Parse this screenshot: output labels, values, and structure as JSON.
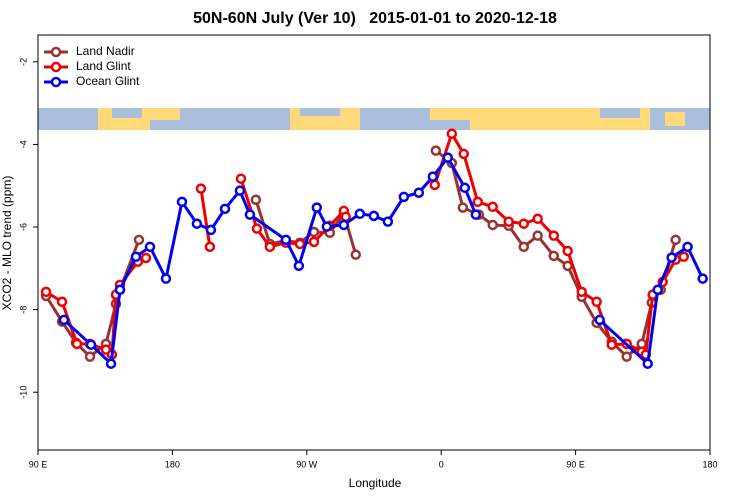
{
  "chart_data": {
    "type": "line",
    "title": "50N-60N July (Ver 10)   2015-01-01 to 2020-12-18",
    "x_label": "Longitude",
    "y_label": "XCO2 - MLO trend (ppm)",
    "xlim": [
      90,
      540
    ],
    "xticks": [
      {
        "value": 90,
        "label": "90 E"
      },
      {
        "value": 180,
        "label": "180"
      },
      {
        "value": 270,
        "label": "90 W"
      },
      {
        "value": 360,
        "label": "0"
      },
      {
        "value": 450,
        "label": "90 E"
      },
      {
        "value": 540,
        "label": "180"
      }
    ],
    "ylim": [
      -11.4,
      -1.35
    ],
    "yticks": [
      -2,
      -4,
      -6,
      -8,
      -10
    ],
    "legend": "top-left",
    "series": [
      {
        "name": "Land Nadir",
        "color": "#993333",
        "x": [
          95.4,
          106.1,
          115.4,
          124.8,
          135.5,
          142.2,
          144.9,
          157.6,
          null,
          235.9,
          245.3,
          256.0,
          265.4,
          274.8,
          285.4,
          294.8,
          302.8,
          null,
          356.4,
          367.1,
          374.5,
          385.2,
          394.5,
          405.2,
          415.3,
          424.6,
          435.4,
          444.7,
          454.1,
          464.1,
          474.2,
          484.2,
          494.3,
          501.0,
          507.0,
          517.0
        ],
        "values": [
          -7.67,
          -8.29,
          -8.8,
          -9.14,
          -8.83,
          -7.86,
          -7.52,
          -6.31,
          null,
          -5.34,
          -6.41,
          -6.33,
          -6.38,
          -6.12,
          -6.14,
          -5.68,
          -6.67,
          null,
          -4.15,
          -4.45,
          -5.53,
          -5.7,
          -5.95,
          -5.97,
          -6.48,
          -6.21,
          -6.7,
          -6.94,
          -7.69,
          -8.32,
          -8.78,
          -9.14,
          -8.83,
          -7.83,
          -7.52,
          -6.31
        ]
      },
      {
        "name": "Land Glint",
        "color": "#ee0000",
        "x": [
          95.4,
          106.1,
          116.1,
          124.8,
          135.5,
          139.5,
          142.2,
          144.9,
          156.9,
          162.3,
          null,
          199.1,
          205.1,
          null,
          225.9,
          236.6,
          245.3,
          256.0,
          265.4,
          274.8,
          285.4,
          294.8,
          296.1,
          null,
          355.7,
          367.1,
          375.1,
          384.5,
          394.5,
          405.2,
          415.3,
          424.6,
          435.4,
          444.7,
          454.1,
          464.1,
          474.2,
          484.2,
          494.3,
          497.0,
          501.6,
          508.3,
          517.0,
          522.4
        ],
        "values": [
          -7.57,
          -7.81,
          -8.83,
          -8.83,
          -8.97,
          -9.09,
          -7.64,
          -7.4,
          -6.84,
          -6.75,
          null,
          -5.07,
          -6.48,
          null,
          -4.83,
          -6.04,
          -6.48,
          -6.38,
          -6.41,
          -6.36,
          -5.97,
          -5.61,
          -5.75,
          null,
          -4.98,
          -3.74,
          -4.23,
          -5.39,
          -5.51,
          -5.87,
          -5.92,
          -5.8,
          -6.21,
          -6.58,
          -7.57,
          -7.81,
          -8.85,
          -8.83,
          -9.02,
          -9.09,
          -7.64,
          -7.33,
          -6.79,
          -6.72
        ]
      },
      {
        "name": "Ocean Glint",
        "color": "#0000ee",
        "x": [
          107.4,
          125.5,
          138.9,
          144.9,
          155.6,
          165.0,
          175.7,
          186.4,
          196.4,
          205.8,
          215.2,
          225.2,
          231.9,
          256.0,
          264.7,
          276.7,
          283.4,
          294.8,
          305.5,
          314.9,
          324.3,
          335.0,
          345.0,
          354.4,
          364.4,
          375.8,
          383.2,
          null,
          466.1,
          498.3,
          505.0,
          514.3,
          525.0,
          535.1
        ],
        "values": [
          -8.25,
          -8.85,
          -9.31,
          -7.52,
          -6.72,
          -6.48,
          -7.25,
          -5.39,
          -5.92,
          -6.07,
          -5.56,
          -5.12,
          -5.7,
          -6.31,
          -6.94,
          -5.53,
          -5.99,
          -5.95,
          -5.68,
          -5.73,
          -5.87,
          -5.27,
          -5.17,
          -4.78,
          -4.32,
          -5.05,
          -5.7,
          null,
          -8.25,
          -9.31,
          -7.52,
          -6.74,
          -6.48,
          -7.25
        ]
      }
    ]
  }
}
